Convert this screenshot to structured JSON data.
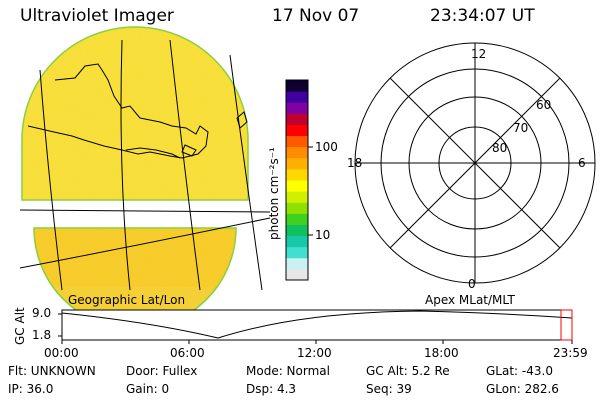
{
  "header": {
    "instrument": "Ultraviolet Imager",
    "date": "17 Nov 07",
    "time": "23:34:07 UT"
  },
  "colorbar": {
    "unit_label": "photon cm⁻²s⁻¹",
    "ticks": [
      "100",
      "10"
    ],
    "colors": [
      "#e8e8e8",
      "#c9f1f4",
      "#40e0d0",
      "#18c8a8",
      "#10c060",
      "#40d020",
      "#90e000",
      "#d0f000",
      "#ffff00",
      "#ffd800",
      "#ffb000",
      "#ff8c00",
      "#ff5a00",
      "#ff0000",
      "#c00030",
      "#8000a0",
      "#4000a0",
      "#100030"
    ]
  },
  "polar_plot": {
    "mlt_labels": {
      "top": "12",
      "bottom": "0",
      "left": "18",
      "right": "6"
    },
    "lat_labels": [
      "60",
      "70",
      "80"
    ],
    "caption": "Apex MLat/MLT"
  },
  "geo_plot": {
    "caption": "Geographic Lat/Lon"
  },
  "timeline": {
    "axis_label": "GC Alt",
    "y_ticks": [
      "9.0",
      "1.8"
    ],
    "x_ticks": [
      "00:00",
      "06:00",
      "12:00",
      "18:00",
      "23:59"
    ]
  },
  "status": {
    "flt": "Flt: UNKNOWN",
    "door": "Door: Fullex",
    "mode": "Mode:  Normal",
    "gc_alt": "GC Alt:  5.2 Re",
    "glat": "GLat:  -43.0",
    "ip": "IP: 36.0",
    "gain": "Gain:   0",
    "dsp": "Dsp:     4.3",
    "seq": "Seq:  39",
    "glon": "GLon:  282.6"
  }
}
